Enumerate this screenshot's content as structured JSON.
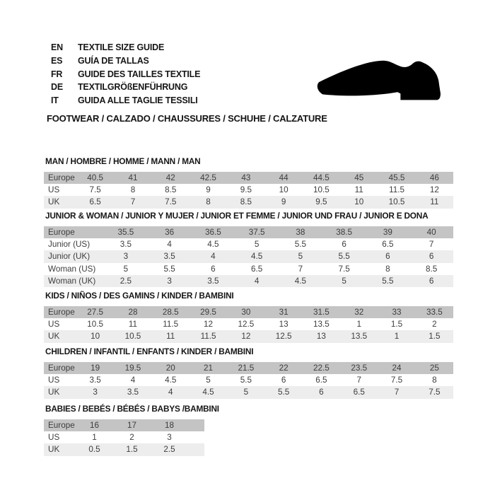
{
  "header": {
    "languages": [
      {
        "code": "EN",
        "label": "TEXTILE SIZE GUIDE"
      },
      {
        "code": "ES",
        "label": "GUÍA DE TALLAS"
      },
      {
        "code": "FR",
        "label": "GUIDE DES TAILLES TEXTILE"
      },
      {
        "code": "DE",
        "label": "TEXTILGRÖßENFÜHRUNG"
      },
      {
        "code": "IT",
        "label": "GUIDA ALLE TAGLIE TESSILI"
      }
    ],
    "category_line": "FOOTWEAR / CALZADO / CHAUSSURES / SCHUHE / CALZATURE",
    "shoe_icon": "dress-shoe-silhouette"
  },
  "colors": {
    "size_header_bg": "#c4c4c4",
    "alt_row_bg": "#ededed",
    "title_text": "#161616",
    "table_text": "#3e3e3e",
    "shoe": "#000000",
    "background": "#ffffff"
  },
  "size_sections": [
    {
      "title": "MAN / HOMBRE / HOMME / MANN / MAN",
      "header_label": "Europe",
      "sizes": [
        "40.5",
        "41",
        "42",
        "42.5",
        "43",
        "44",
        "44.5",
        "45",
        "45.5",
        "46"
      ],
      "rows": [
        {
          "label": "US",
          "values": [
            "7.5",
            "8",
            "8.5",
            "9",
            "9.5",
            "10",
            "10.5",
            "11",
            "11.5",
            "12"
          ]
        },
        {
          "label": "UK",
          "values": [
            "6.5",
            "7",
            "7.5",
            "8",
            "8.5",
            "9",
            "9.5",
            "10",
            "10.5",
            "11"
          ]
        }
      ]
    },
    {
      "title": "JUNIOR & WOMAN / JUNIOR Y MUJER / JUNIOR ET FEMME / JUNIOR UND FRAU / JUNIOR E DONA",
      "header_label": "Europe",
      "sizes": [
        "35.5",
        "36",
        "36.5",
        "37.5",
        "38",
        "38.5",
        "39",
        "40"
      ],
      "rows": [
        {
          "label": "Junior (US)",
          "values": [
            "3.5",
            "4",
            "4.5",
            "5",
            "5.5",
            "6",
            "6.5",
            "7"
          ]
        },
        {
          "label": "Junior (UK)",
          "values": [
            "3",
            "3.5",
            "4",
            "4.5",
            "5",
            "5.5",
            "6",
            "6"
          ]
        },
        {
          "label": "Woman (US)",
          "values": [
            "5",
            "5.5",
            "6",
            "6.5",
            "7",
            "7.5",
            "8",
            "8.5"
          ]
        },
        {
          "label": "Woman (UK)",
          "values": [
            "2.5",
            "3",
            "3.5",
            "4",
            "4.5",
            "5",
            "5.5",
            "6"
          ]
        }
      ]
    },
    {
      "title": "KIDS / NIÑOS / DES GAMINS / KINDER / BAMBINI",
      "header_label": "Europe",
      "sizes": [
        "27.5",
        "28",
        "28.5",
        "29.5",
        "30",
        "31",
        "31.5",
        "32",
        "33",
        "33.5"
      ],
      "rows": [
        {
          "label": "US",
          "values": [
            "10.5",
            "11",
            "11.5",
            "12",
            "12.5",
            "13",
            "13.5",
            "1",
            "1.5",
            "2"
          ]
        },
        {
          "label": "UK",
          "values": [
            "10",
            "10.5",
            "11",
            "11.5",
            "12",
            "12.5",
            "13",
            "13.5",
            "1",
            "1.5"
          ]
        }
      ]
    },
    {
      "title": "CHILDREN / INFANTIL / ENFANTS / KINDER / BAMBINI",
      "header_label": "Europe",
      "sizes": [
        "19",
        "19.5",
        "20",
        "21",
        "21.5",
        "22",
        "22.5",
        "23.5",
        "24",
        "25"
      ],
      "rows": [
        {
          "label": "US",
          "values": [
            "3.5",
            "4",
            "4.5",
            "5",
            "5.5",
            "6",
            "6.5",
            "7",
            "7.5",
            "8"
          ]
        },
        {
          "label": "UK",
          "values": [
            "3",
            "3.5",
            "4",
            "4.5",
            "5",
            "5.5",
            "6",
            "6.5",
            "7",
            "7.5"
          ]
        }
      ]
    },
    {
      "title": "BABIES  / BEBÉS / BÉBÉS / BABYS /BAMBINI",
      "header_label": "Europe",
      "sizes": [
        "16",
        "17",
        "18"
      ],
      "rows": [
        {
          "label": "US",
          "values": [
            "1",
            "2",
            "3"
          ]
        },
        {
          "label": "UK",
          "values": [
            "0.5",
            "1.5",
            "2.5"
          ]
        }
      ]
    }
  ]
}
